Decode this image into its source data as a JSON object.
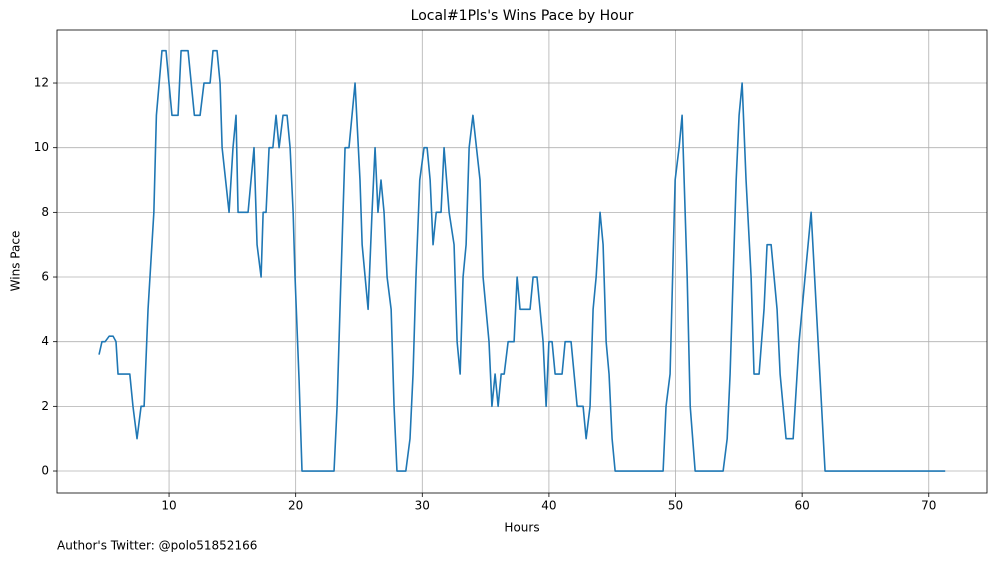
{
  "chart_data": {
    "type": "line",
    "title": "Local#1Pls's Wins Pace by Hour",
    "xlabel": "Hours",
    "ylabel": "Wins Pace",
    "footnote": "Author's Twitter: @polo51852166",
    "xlim": [
      1.15,
      74.6
    ],
    "ylim": [
      -0.68,
      13.64
    ],
    "xticks": [
      10,
      20,
      30,
      40,
      50,
      60,
      70
    ],
    "yticks": [
      0,
      2,
      4,
      6,
      8,
      10,
      12
    ],
    "grid": true,
    "series": [
      {
        "color": "#1f77b4",
        "x": [
          4.47,
          4.7,
          4.95,
          5.27,
          5.58,
          5.81,
          5.97,
          6.9,
          7.15,
          7.47,
          7.79,
          8.03,
          8.34,
          8.8,
          9.0,
          9.44,
          9.76,
          10.23,
          10.71,
          10.95,
          11.5,
          12.0,
          12.45,
          12.76,
          13.24,
          13.47,
          13.79,
          14.03,
          14.19,
          14.74,
          15.05,
          15.29,
          15.45,
          16.24,
          16.71,
          16.95,
          17.27,
          17.43,
          17.66,
          17.9,
          18.2,
          18.45,
          18.69,
          19.0,
          19.32,
          19.56,
          19.8,
          19.95,
          20.27,
          20.5,
          23.03,
          23.27,
          23.5,
          23.9,
          24.21,
          24.69,
          25.08,
          25.25,
          25.72,
          26.03,
          26.27,
          26.5,
          26.74,
          26.98,
          27.22,
          27.54,
          27.77,
          28.0,
          28.7,
          29.03,
          29.27,
          29.5,
          29.8,
          30.14,
          30.38,
          30.62,
          30.85,
          31.1,
          31.48,
          31.72,
          32.12,
          32.51,
          32.75,
          32.99,
          33.22,
          33.46,
          33.7,
          34.0,
          34.56,
          34.8,
          35.27,
          35.5,
          35.75,
          35.99,
          36.23,
          36.47,
          36.78,
          37.25,
          37.49,
          37.72,
          38.51,
          38.75,
          39.06,
          39.54,
          39.78,
          40.0,
          40.25,
          40.49,
          41.04,
          41.28,
          41.75,
          42.23,
          42.7,
          42.94,
          43.25,
          43.49,
          43.73,
          44.04,
          44.28,
          44.52,
          44.75,
          44.99,
          45.23,
          49.02,
          49.25,
          49.57,
          49.97,
          50.28,
          50.52,
          50.92,
          51.16,
          51.55,
          53.76,
          54.08,
          54.31,
          54.79,
          55.02,
          55.26,
          55.57,
          55.97,
          56.2,
          56.6,
          56.99,
          57.23,
          57.55,
          58.02,
          58.26,
          58.73,
          59.29,
          59.76,
          60.23,
          60.71,
          61.26,
          61.81,
          71.3
        ],
        "values": [
          3.6,
          4,
          4,
          4.17,
          4.17,
          4,
          3,
          3,
          2,
          1,
          2,
          2,
          5,
          8,
          11,
          13,
          13,
          11,
          11,
          13,
          13,
          11,
          11,
          12,
          12,
          13,
          13,
          12,
          10,
          8,
          10,
          11,
          8,
          8,
          10,
          7,
          6,
          8,
          8,
          10,
          10,
          11,
          10,
          11,
          11,
          10,
          8,
          6,
          2.8,
          0,
          0,
          2,
          5,
          10,
          10,
          12,
          9,
          7,
          5,
          8,
          10,
          8,
          9,
          8,
          6,
          5,
          2,
          0,
          0,
          1,
          3,
          6,
          9,
          10,
          10,
          9,
          7,
          8,
          8,
          10,
          8,
          7,
          4,
          3,
          6,
          7,
          10,
          11,
          9,
          6,
          4,
          2,
          3,
          2,
          3,
          3,
          4,
          4,
          6,
          5,
          5,
          6,
          6,
          4,
          2,
          4,
          4,
          3,
          3,
          4,
          4,
          2,
          2,
          1,
          2,
          5,
          6,
          8,
          7,
          4,
          3,
          1,
          0,
          0,
          2,
          3,
          9,
          10,
          11,
          6,
          2,
          0,
          0,
          1,
          3,
          9,
          11,
          12,
          9,
          6,
          3,
          3,
          5,
          7,
          7,
          5,
          3,
          1,
          1,
          4,
          6,
          8,
          4,
          0,
          0
        ]
      }
    ]
  }
}
